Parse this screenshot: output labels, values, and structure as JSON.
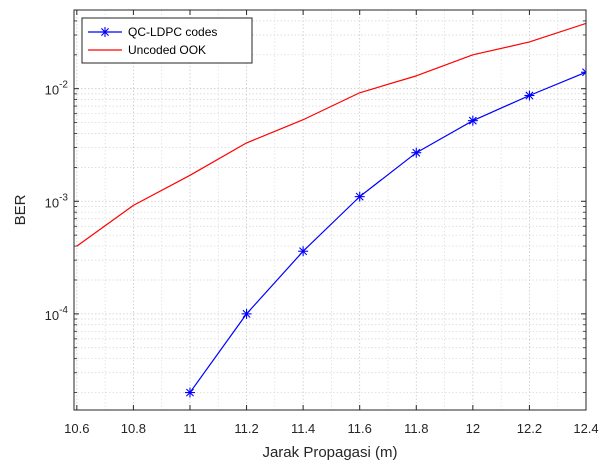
{
  "chart_data": {
    "type": "line",
    "title": "",
    "xlabel": "Jarak Propagasi (m)",
    "ylabel": "BER",
    "xscale": "linear",
    "yscale": "log",
    "xlim": [
      10.59,
      12.4
    ],
    "ylim": [
      1.4e-05,
      0.05
    ],
    "grid": "on",
    "minor_grid": "on",
    "legend_position": "top-left",
    "x_ticks": [
      10.6,
      10.8,
      11,
      11.2,
      11.4,
      11.6,
      11.8,
      12,
      12.2,
      12.4
    ],
    "x_tick_labels": [
      "10.6",
      "10.8",
      "11",
      "11.2",
      "11.4",
      "11.6",
      "11.8",
      "12",
      "12.2",
      "12.4"
    ],
    "y_ticks": [
      {
        "value": 0.0001,
        "base": "10",
        "exp": "-4"
      },
      {
        "value": 0.001,
        "base": "10",
        "exp": "-3"
      },
      {
        "value": 0.01,
        "base": "10",
        "exp": "-2"
      }
    ],
    "series": [
      {
        "name": "QC-LDPC codes",
        "color": "#0000ff",
        "marker": "asterisk",
        "x": [
          11.0,
          11.2,
          11.4,
          11.6,
          11.8,
          12.0,
          12.2,
          12.4
        ],
        "y": [
          2e-05,
          0.0001,
          0.00036,
          0.0011,
          0.0027,
          0.0052,
          0.0087,
          0.014
        ]
      },
      {
        "name": "Uncoded OOK",
        "color": "#ff0000",
        "marker": "none",
        "x": [
          10.6,
          10.8,
          11.0,
          11.2,
          11.4,
          11.6,
          11.8,
          12.0,
          12.2,
          12.4
        ],
        "y": [
          0.0004,
          0.00092,
          0.0017,
          0.0033,
          0.0053,
          0.0092,
          0.013,
          0.02,
          0.026,
          0.038
        ]
      }
    ]
  }
}
